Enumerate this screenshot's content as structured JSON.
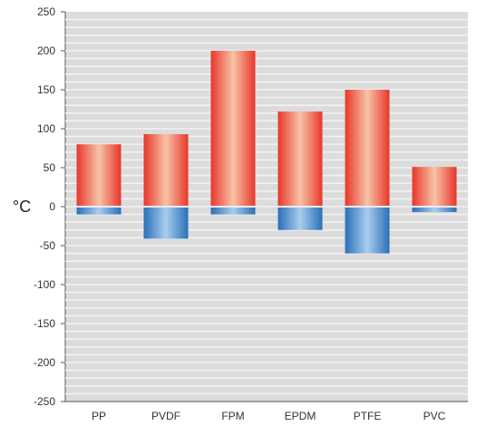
{
  "chart_data": {
    "type": "bar",
    "ylabel": "°C",
    "ylim": [
      -250,
      250
    ],
    "yticks": [
      250,
      200,
      150,
      100,
      50,
      0,
      -50,
      -100,
      -150,
      -200,
      -250
    ],
    "categories": [
      "PP",
      "PVDF",
      "FPM",
      "EPDM",
      "PTFE",
      "PVC"
    ],
    "series": [
      {
        "values": [
          80,
          93,
          200,
          122,
          150,
          51
        ]
      },
      {
        "values": [
          -10,
          -41,
          -10,
          -30,
          -60,
          -7
        ]
      }
    ],
    "grid": true,
    "colors": {
      "max_edge": "#e8362a",
      "max_mid": "#f7c3a8",
      "min_edge": "#2a6fb8",
      "min_mid": "#a9cdee",
      "background": "#dcdcdc",
      "grid": "#f2f2f2",
      "frame": "#555555"
    }
  }
}
